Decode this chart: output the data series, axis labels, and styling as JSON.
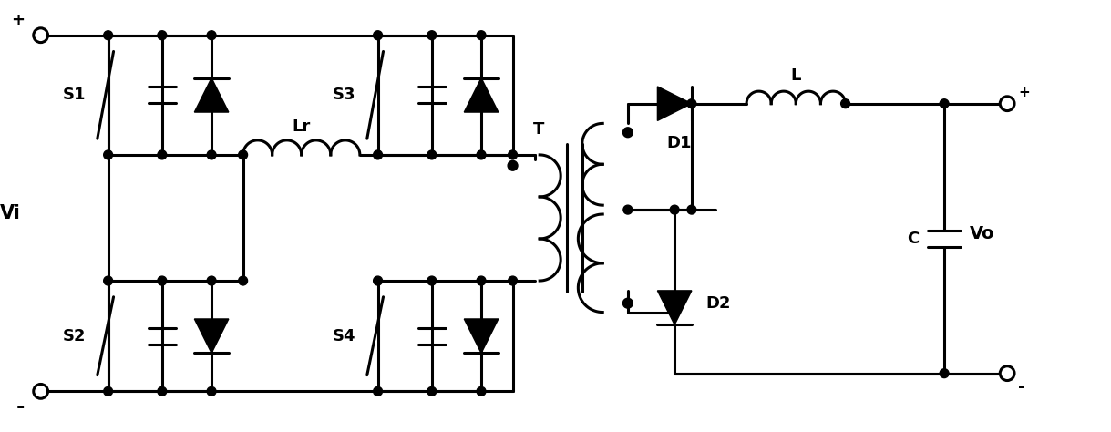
{
  "fig_width": 12.19,
  "fig_height": 4.74,
  "bg": "#ffffff",
  "lc": "#000000",
  "lw": 2.2,
  "labels": {
    "plus_in": "+",
    "minus_in": "-",
    "Vi": "Vi",
    "S1": "S1",
    "S2": "S2",
    "S3": "S3",
    "S4": "S4",
    "Lr": "Lr",
    "T": "T",
    "D1": "D1",
    "D2": "D2",
    "L": "L",
    "C": "C",
    "Vo": "Vo",
    "plus_out": "+",
    "minus_out": "-"
  }
}
